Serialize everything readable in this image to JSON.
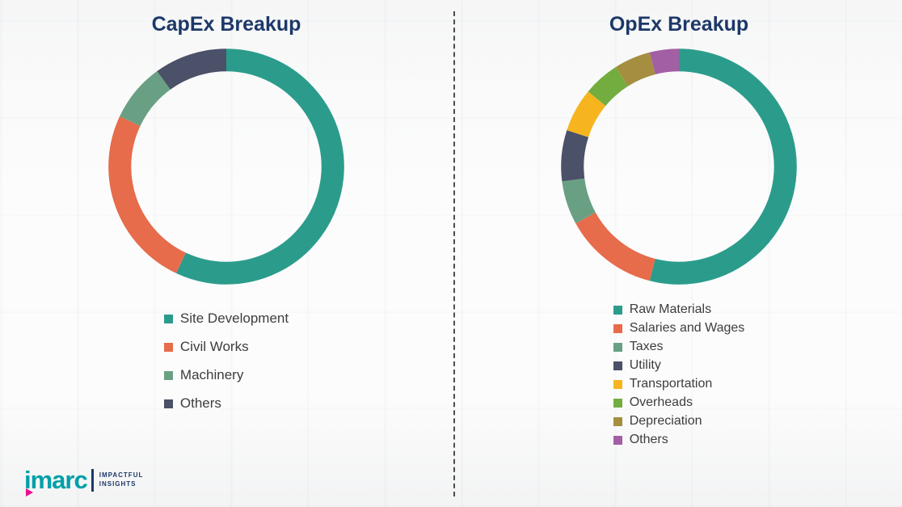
{
  "chart_data": [
    {
      "type": "pie",
      "subtype": "donut",
      "title": "CapEx Breakup",
      "labels": [
        "Site Development",
        "Civil Works",
        "Machinery",
        "Others"
      ],
      "values": [
        57,
        25,
        8,
        10
      ],
      "colors": [
        "#2B9C8C",
        "#E66C4B",
        "#69A083",
        "#4A5168"
      ],
      "start_angle_deg": -90,
      "direction": "clockwise",
      "legend_position": "bottom",
      "data_labels_shown": false
    },
    {
      "type": "pie",
      "subtype": "donut",
      "title": "OpEx Breakup",
      "labels": [
        "Raw Materials",
        "Salaries and Wages",
        "Taxes",
        "Utility",
        "Transportation",
        "Overheads",
        "Depreciation",
        "Others"
      ],
      "values": [
        54,
        13,
        6,
        7,
        6,
        5,
        5,
        4
      ],
      "colors": [
        "#2B9C8C",
        "#E66C4B",
        "#69A083",
        "#4A5168",
        "#F6B51E",
        "#74AD3F",
        "#A58E3F",
        "#A35FA3"
      ],
      "start_angle_deg": -90,
      "direction": "clockwise",
      "legend_position": "bottom",
      "data_labels_shown": false
    }
  ],
  "logo": {
    "brand": "imarc",
    "tagline_line1": "IMPACTFUL",
    "tagline_line2": "INSIGHTS",
    "brand_color": "#00A0A8",
    "accent_color": "#EC0C8C",
    "tagline_color": "#1D3868"
  },
  "style": {
    "title_color": "#1D3868",
    "legend_text_color": "#3D3D3D",
    "divider_color": "#4d4d4d"
  }
}
